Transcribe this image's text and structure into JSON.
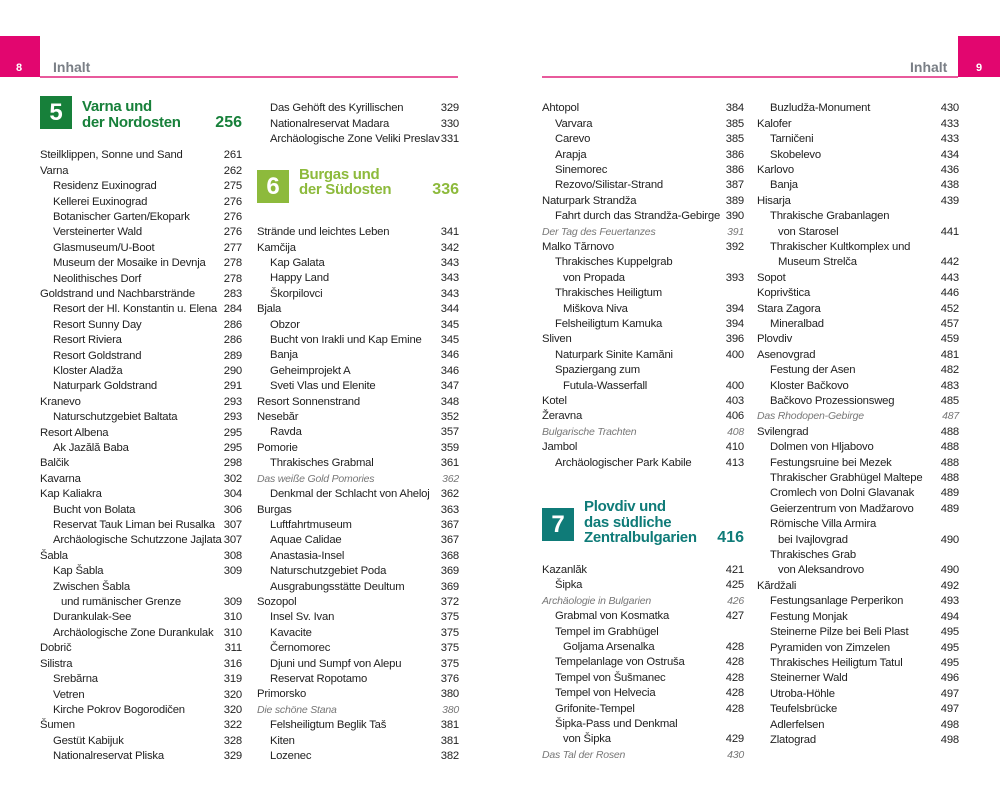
{
  "header": {
    "left": {
      "page": "8",
      "label": "Inhalt"
    },
    "right": {
      "page": "9",
      "label": "Inhalt"
    },
    "accent": "#e2066f"
  },
  "columns": [
    {
      "blocks": [
        {
          "chapter": {
            "num": "5",
            "lines": [
              "Varna und",
              "der Nordosten"
            ],
            "page": "256",
            "color": "#17803a"
          }
        },
        {
          "entries": [
            {
              "t": "Steilklippen, Sonne und Sand",
              "p": "261",
              "l": 0
            },
            {
              "t": "Varna",
              "p": "262",
              "l": 0
            },
            {
              "t": "Residenz Euxinograd",
              "p": "275",
              "l": 1
            },
            {
              "t": "Kellerei Euxinograd",
              "p": "276",
              "l": 1
            },
            {
              "t": "Botanischer Garten/Ekopark",
              "p": "276",
              "l": 1
            },
            {
              "t": "Versteinerter Wald",
              "p": "276",
              "l": 1
            },
            {
              "t": "Glasmuseum/U-Boot",
              "p": "277",
              "l": 1
            },
            {
              "t": "Museum der Mosaike in Devnja",
              "p": "278",
              "l": 1
            },
            {
              "t": "Neolithisches Dorf",
              "p": "278",
              "l": 1
            },
            {
              "t": "Goldstrand und Nachbarstrände",
              "p": "283",
              "l": 0
            },
            {
              "t": "Resort der Hl. Konstantin u. Elena",
              "p": "284",
              "l": 1
            },
            {
              "t": "Resort Sunny Day",
              "p": "286",
              "l": 1
            },
            {
              "t": "Resort Riviera",
              "p": "286",
              "l": 1
            },
            {
              "t": "Resort Goldstrand",
              "p": "289",
              "l": 1
            },
            {
              "t": "Kloster Aladža",
              "p": "290",
              "l": 1
            },
            {
              "t": "Naturpark Goldstrand",
              "p": "291",
              "l": 1
            },
            {
              "t": "Kranevo",
              "p": "293",
              "l": 0
            },
            {
              "t": "Naturschutzgebiet Baltata",
              "p": "293",
              "l": 1
            },
            {
              "t": "Resort Albena",
              "p": "295",
              "l": 0
            },
            {
              "t": "Ak Jazălă Baba",
              "p": "295",
              "l": 1
            },
            {
              "t": "Balčik",
              "p": "298",
              "l": 0
            },
            {
              "t": "Kavarna",
              "p": "302",
              "l": 0
            },
            {
              "t": "Kap Kaliakra",
              "p": "304",
              "l": 0
            },
            {
              "t": "Bucht von Bolata",
              "p": "306",
              "l": 1
            },
            {
              "t": "Reservat Tauk Liman bei Rusalka",
              "p": "307",
              "l": 1
            },
            {
              "t": "Archäologische Schutzzone Jajlata",
              "p": "307",
              "l": 1
            },
            {
              "t": "Šabla",
              "p": "308",
              "l": 0
            },
            {
              "t": "Kap Šabla",
              "p": "309",
              "l": 1
            },
            {
              "t": "Zwischen Šabla",
              "p": "",
              "l": 1
            },
            {
              "t": "und rumänischer Grenze",
              "p": "309",
              "l": 2
            },
            {
              "t": "Durankulak-See",
              "p": "310",
              "l": 1
            },
            {
              "t": "Archäologische Zone Durankulak",
              "p": "310",
              "l": 1
            },
            {
              "t": "Dobrič",
              "p": "311",
              "l": 0
            },
            {
              "t": "Silistra",
              "p": "316",
              "l": 0
            },
            {
              "t": "Srebărna",
              "p": "319",
              "l": 1
            },
            {
              "t": "Vetren",
              "p": "320",
              "l": 1
            },
            {
              "t": "Kirche Pokrov Bogorodičen",
              "p": "320",
              "l": 1
            },
            {
              "t": "Šumen",
              "p": "322",
              "l": 0
            },
            {
              "t": "Gestüt Kabijuk",
              "p": "328",
              "l": 1
            },
            {
              "t": "Nationalreservat Pliska",
              "p": "329",
              "l": 1
            }
          ]
        }
      ]
    },
    {
      "blocks": [
        {
          "entries": [
            {
              "t": "Das Gehöft des Kyrillischen",
              "p": "329",
              "l": 1
            },
            {
              "t": "Nationalreservat Madara",
              "p": "330",
              "l": 1
            },
            {
              "t": "Archäologische Zone Veliki Preslav",
              "p": "331",
              "l": 1
            }
          ]
        },
        {
          "chapter": {
            "num": "6",
            "lines": [
              "Burgas und",
              "der Südosten"
            ],
            "page": "336",
            "color": "#8dba3c"
          }
        },
        {
          "entries": [
            {
              "t": "Strände und leichtes Leben",
              "p": "341",
              "l": 0
            },
            {
              "t": "Kamčija",
              "p": "342",
              "l": 0
            },
            {
              "t": "Kap Galata",
              "p": "343",
              "l": 1
            },
            {
              "t": "Happy Land",
              "p": "343",
              "l": 1
            },
            {
              "t": "Škorpilovci",
              "p": "343",
              "l": 1
            },
            {
              "t": "Bjala",
              "p": "344",
              "l": 0
            },
            {
              "t": "Obzor",
              "p": "345",
              "l": 1
            },
            {
              "t": "Bucht von Irakli und Kap Emine",
              "p": "345",
              "l": 1
            },
            {
              "t": "Banja",
              "p": "346",
              "l": 1
            },
            {
              "t": "Geheimprojekt A",
              "p": "346",
              "l": 1
            },
            {
              "t": "Sveti Vlas und Elenite",
              "p": "347",
              "l": 1
            },
            {
              "t": "Resort Sonnenstrand",
              "p": "348",
              "l": 0
            },
            {
              "t": "Nesebăr",
              "p": "352",
              "l": 0
            },
            {
              "t": "Ravda",
              "p": "357",
              "l": 1
            },
            {
              "t": "Pomorie",
              "p": "359",
              "l": 0
            },
            {
              "t": "Thrakisches Grabmal",
              "p": "361",
              "l": 1
            },
            {
              "t": "Das weiße Gold Pomories",
              "p": "362",
              "l": 0,
              "feature": true
            },
            {
              "t": "Denkmal der Schlacht von Aheloj",
              "p": "362",
              "l": 1
            },
            {
              "t": "Burgas",
              "p": "363",
              "l": 0
            },
            {
              "t": "Luftfahrtmuseum",
              "p": "367",
              "l": 1
            },
            {
              "t": "Aquae Calidae",
              "p": "367",
              "l": 1
            },
            {
              "t": "Anastasia-Insel",
              "p": "368",
              "l": 1
            },
            {
              "t": "Naturschutzgebiet Poda",
              "p": "369",
              "l": 1
            },
            {
              "t": "Ausgrabungsstätte Deultum",
              "p": "369",
              "l": 1
            },
            {
              "t": "Sozopol",
              "p": "372",
              "l": 0
            },
            {
              "t": "Insel Sv. Ivan",
              "p": "375",
              "l": 1
            },
            {
              "t": "Kavacite",
              "p": "375",
              "l": 1
            },
            {
              "t": "Černomorec",
              "p": "375",
              "l": 1
            },
            {
              "t": "Djuni und Sumpf von Alepu",
              "p": "375",
              "l": 1
            },
            {
              "t": "Reservat Ropotamo",
              "p": "376",
              "l": 1
            },
            {
              "t": "Primorsko",
              "p": "380",
              "l": 0
            },
            {
              "t": "Die schöne Stana",
              "p": "380",
              "l": 0,
              "feature": true
            },
            {
              "t": "Felsheiligtum Beglik Taš",
              "p": "381",
              "l": 1
            },
            {
              "t": "Kiten",
              "p": "381",
              "l": 1
            },
            {
              "t": "Lozenec",
              "p": "382",
              "l": 1
            }
          ]
        }
      ]
    },
    {
      "blocks": [
        {
          "entries": [
            {
              "t": "Ahtopol",
              "p": "384",
              "l": 0
            },
            {
              "t": "Varvara",
              "p": "385",
              "l": 1
            },
            {
              "t": "Carevo",
              "p": "385",
              "l": 1
            },
            {
              "t": "Arapja",
              "p": "386",
              "l": 1
            },
            {
              "t": "Sinemorec",
              "p": "386",
              "l": 1
            },
            {
              "t": "Rezovo/Silistar-Strand",
              "p": "387",
              "l": 1
            },
            {
              "t": "Naturpark Strandža",
              "p": "389",
              "l": 0
            },
            {
              "t": "Fahrt durch das Strandža-Gebirge",
              "p": "390",
              "l": 1
            },
            {
              "t": "Der Tag des Feuertanzes",
              "p": "391",
              "l": 0,
              "feature": true
            },
            {
              "t": "Malko Tărnovo",
              "p": "392",
              "l": 0
            },
            {
              "t": "Thrakisches Kuppelgrab",
              "p": "",
              "l": 1
            },
            {
              "t": "von Propada",
              "p": "393",
              "l": 2
            },
            {
              "t": "Thrakisches Heiligtum",
              "p": "",
              "l": 1
            },
            {
              "t": "Miškova Niva",
              "p": "394",
              "l": 2
            },
            {
              "t": "Felsheiligtum Kamuka",
              "p": "394",
              "l": 1
            },
            {
              "t": "Sliven",
              "p": "396",
              "l": 0
            },
            {
              "t": "Naturpark Sinite Kamăni",
              "p": "400",
              "l": 1
            },
            {
              "t": "Spaziergang zum",
              "p": "",
              "l": 1
            },
            {
              "t": "Futula-Wasserfall",
              "p": "400",
              "l": 2
            },
            {
              "t": "Kotel",
              "p": "403",
              "l": 0
            },
            {
              "t": "Žeravna",
              "p": "406",
              "l": 0
            },
            {
              "t": "Bulgarische Trachten",
              "p": "408",
              "l": 0,
              "feature": true
            },
            {
              "t": "Jambol",
              "p": "410",
              "l": 0
            },
            {
              "t": "Archäologischer Park Kabile",
              "p": "413",
              "l": 1
            }
          ]
        },
        {
          "chapter": {
            "num": "7",
            "lines": [
              "Plovdiv und",
              "das südliche",
              "Zentralbulgarien"
            ],
            "page": "416",
            "color": "#0f7b78"
          }
        },
        {
          "entries": [
            {
              "t": "Kazanlăk",
              "p": "421",
              "l": 0
            },
            {
              "t": "Šipka",
              "p": "425",
              "l": 1
            },
            {
              "t": "Archäologie in Bulgarien",
              "p": "426",
              "l": 0,
              "feature": true
            },
            {
              "t": "Grabmal von Kosmatka",
              "p": "427",
              "l": 1
            },
            {
              "t": "Tempel im Grabhügel",
              "p": "",
              "l": 1
            },
            {
              "t": "Goljama Arsenalka",
              "p": "428",
              "l": 2
            },
            {
              "t": "Tempelanlage von Ostruša",
              "p": "428",
              "l": 1
            },
            {
              "t": "Tempel von Šušmanec",
              "p": "428",
              "l": 1
            },
            {
              "t": "Tempel von Helvecia",
              "p": "428",
              "l": 1
            },
            {
              "t": "Grifonite-Tempel",
              "p": "428",
              "l": 1
            },
            {
              "t": "Šipka-Pass und Denkmal",
              "p": "",
              "l": 1
            },
            {
              "t": "von Šipka",
              "p": "429",
              "l": 2
            },
            {
              "t": "Das Tal der Rosen",
              "p": "430",
              "l": 0,
              "feature": true
            }
          ]
        }
      ]
    },
    {
      "blocks": [
        {
          "entries": [
            {
              "t": "Buzludža-Monument",
              "p": "430",
              "l": 1
            },
            {
              "t": "Kalofer",
              "p": "433",
              "l": 0
            },
            {
              "t": "Tarničeni",
              "p": "433",
              "l": 1
            },
            {
              "t": "Skobelevo",
              "p": "434",
              "l": 1
            },
            {
              "t": "Karlovo",
              "p": "436",
              "l": 0
            },
            {
              "t": "Banja",
              "p": "438",
              "l": 1
            },
            {
              "t": "Hisarja",
              "p": "439",
              "l": 0
            },
            {
              "t": "Thrakische Grabanlagen",
              "p": "",
              "l": 1
            },
            {
              "t": "von Starosel",
              "p": "441",
              "l": 2
            },
            {
              "t": "Thrakischer Kultkomplex und",
              "p": "",
              "l": 1
            },
            {
              "t": "Museum Strelča",
              "p": "442",
              "l": 2
            },
            {
              "t": "Sopot",
              "p": "443",
              "l": 0
            },
            {
              "t": "Koprivštica",
              "p": "446",
              "l": 0
            },
            {
              "t": "Stara Zagora",
              "p": "452",
              "l": 0
            },
            {
              "t": "Mineralbad",
              "p": "457",
              "l": 1
            },
            {
              "t": "Plovdiv",
              "p": "459",
              "l": 0
            },
            {
              "t": "Asenovgrad",
              "p": "481",
              "l": 0
            },
            {
              "t": "Festung der Asen",
              "p": "482",
              "l": 1
            },
            {
              "t": "Kloster Bačkovo",
              "p": "483",
              "l": 1
            },
            {
              "t": "Bačkovo Prozessionsweg",
              "p": "485",
              "l": 1
            },
            {
              "t": "Das Rhodopen-Gebirge",
              "p": "487",
              "l": 0,
              "feature": true
            },
            {
              "t": "Svilengrad",
              "p": "488",
              "l": 0
            },
            {
              "t": "Dolmen von Hljabovo",
              "p": "488",
              "l": 1
            },
            {
              "t": "Festungsruine bei Mezek",
              "p": "488",
              "l": 1
            },
            {
              "t": "Thrakischer Grabhügel Maltepe",
              "p": "488",
              "l": 1
            },
            {
              "t": "Cromlech von Dolni Glavanak",
              "p": "489",
              "l": 1
            },
            {
              "t": "Geierzentrum von Madžarovo",
              "p": "489",
              "l": 1
            },
            {
              "t": "Römische Villa Armira",
              "p": "",
              "l": 1
            },
            {
              "t": "bei Ivajlovgrad",
              "p": "490",
              "l": 2
            },
            {
              "t": "Thrakisches Grab",
              "p": "",
              "l": 1
            },
            {
              "t": "von Aleksandrovo",
              "p": "490",
              "l": 2
            },
            {
              "t": "Kărdžali",
              "p": "492",
              "l": 0
            },
            {
              "t": "Festungsanlage Perperikon",
              "p": "493",
              "l": 1
            },
            {
              "t": "Festung Monjak",
              "p": "494",
              "l": 1
            },
            {
              "t": "Steinerne Pilze bei Beli Plast",
              "p": "495",
              "l": 1
            },
            {
              "t": "Pyramiden von Zimzelen",
              "p": "495",
              "l": 1
            },
            {
              "t": "Thrakisches Heiligtum Tatul",
              "p": "495",
              "l": 1
            },
            {
              "t": "Steinerner Wald",
              "p": "496",
              "l": 1
            },
            {
              "t": "Utroba-Höhle",
              "p": "497",
              "l": 1
            },
            {
              "t": "Teufelsbrücke",
              "p": "497",
              "l": 1
            },
            {
              "t": "Adlerfelsen",
              "p": "498",
              "l": 1
            },
            {
              "t": "Zlatograd",
              "p": "498",
              "l": 1
            }
          ]
        }
      ]
    }
  ]
}
